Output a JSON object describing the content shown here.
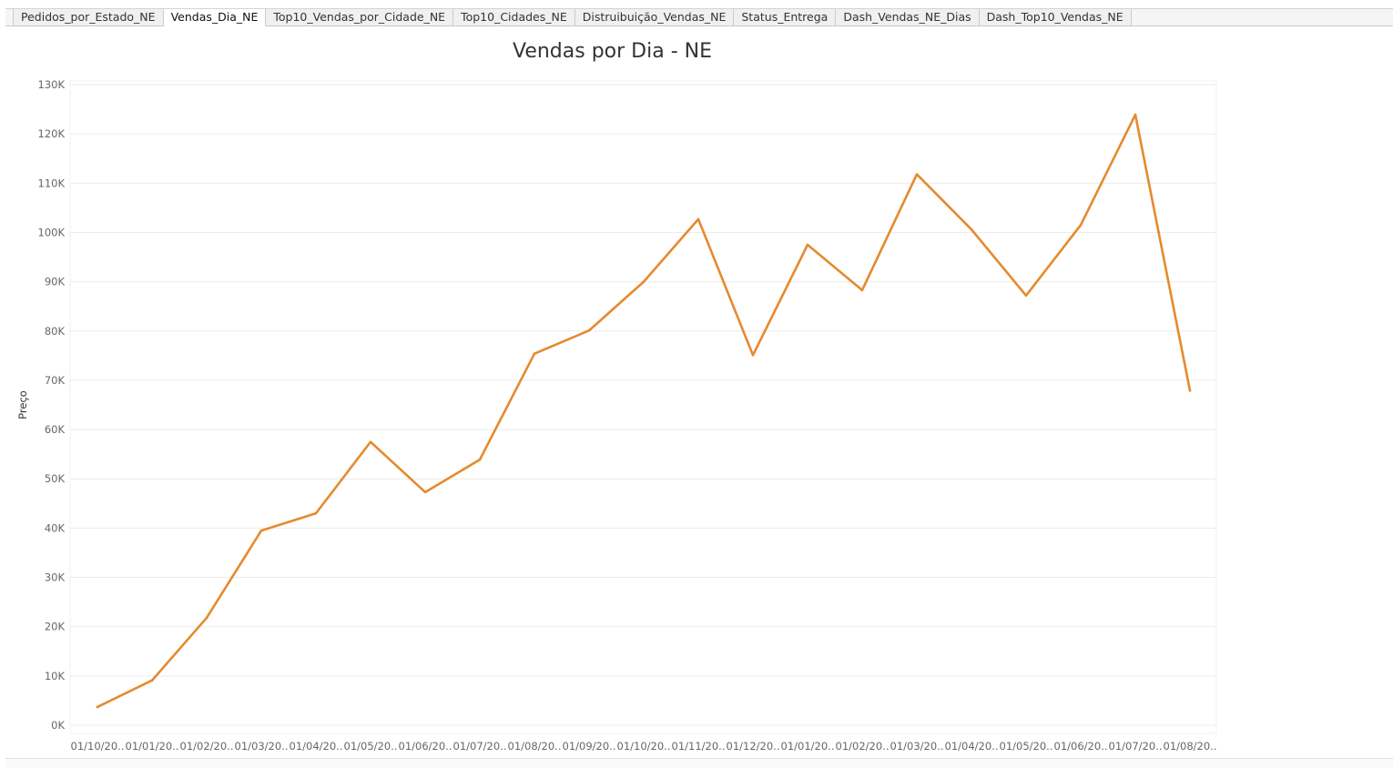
{
  "tabs": [
    {
      "label": "Pedidos_por_Estado_NE",
      "active": false
    },
    {
      "label": "Vendas_Dia_NE",
      "active": true
    },
    {
      "label": "Top10_Vendas_por_Cidade_NE",
      "active": false
    },
    {
      "label": "Top10_Cidades_NE",
      "active": false
    },
    {
      "label": "Distruibuição_Vendas_NE",
      "active": false
    },
    {
      "label": "Status_Entrega",
      "active": false
    },
    {
      "label": "Dash_Vendas_NE_Dias",
      "active": false
    },
    {
      "label": "Dash_Top10_Vendas_NE",
      "active": false
    }
  ],
  "colors": {
    "line": "#E58A2E",
    "grid": "#ececec"
  },
  "chart_data": {
    "type": "line",
    "title": "Vendas por Dia - NE",
    "xlabel": "",
    "ylabel": "Preço",
    "ylim": [
      0,
      130000
    ],
    "yticks": [
      0,
      10000,
      20000,
      30000,
      40000,
      50000,
      60000,
      70000,
      80000,
      90000,
      100000,
      110000,
      120000,
      130000
    ],
    "ytick_labels": [
      "0K",
      "10K",
      "20K",
      "30K",
      "40K",
      "50K",
      "60K",
      "70K",
      "80K",
      "90K",
      "100K",
      "110K",
      "120K",
      "130K"
    ],
    "grid": true,
    "x": [
      "01/10/20..",
      "01/01/20..",
      "01/02/20..",
      "01/03/20..",
      "01/04/20..",
      "01/05/20..",
      "01/06/20..",
      "01/07/20..",
      "01/08/20..",
      "01/09/20..",
      "01/10/20..",
      "01/11/20..",
      "01/12/20..",
      "01/01/20..",
      "01/02/20..",
      "01/03/20..",
      "01/04/20..",
      "01/05/20..",
      "01/06/20..",
      "01/07/20..",
      "01/08/20.."
    ],
    "series": [
      {
        "values": [
          3700,
          9100,
          21800,
          39500,
          43000,
          57500,
          47300,
          53900,
          75400,
          80100,
          90000,
          102700,
          75100,
          97500,
          88300,
          111800,
          100600,
          87200,
          101500,
          123900,
          67900
        ]
      }
    ]
  }
}
